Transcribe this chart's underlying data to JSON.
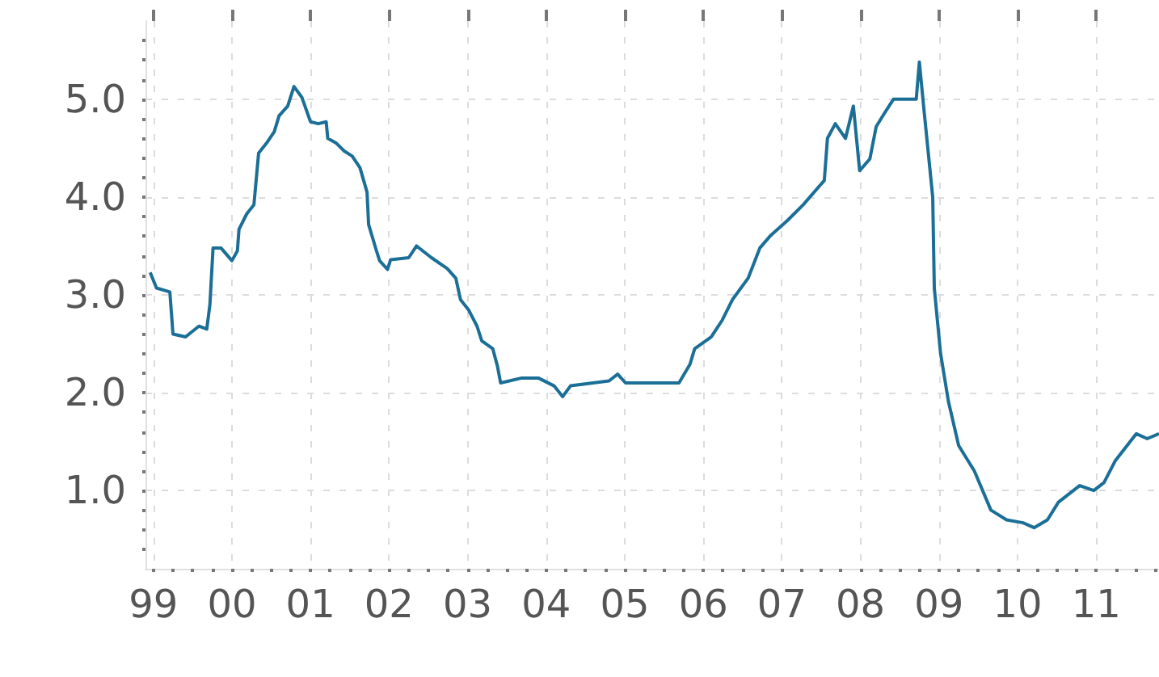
{
  "chart_data": {
    "type": "line",
    "grid": true,
    "marker": "none",
    "xlim": [
      1998.9,
      2011.8
    ],
    "ylim": [
      0.2,
      5.8
    ],
    "xticks": [
      {
        "value": 1999,
        "label": "99"
      },
      {
        "value": 1999.25,
        "label": null
      },
      {
        "value": 1999.5,
        "label": null
      },
      {
        "value": 1999.75,
        "label": null
      },
      {
        "value": 2000,
        "label": "00"
      },
      {
        "value": 2000.25,
        "label": null
      },
      {
        "value": 2000.5,
        "label": null
      },
      {
        "value": 2000.75,
        "label": null
      },
      {
        "value": 2001,
        "label": "01"
      },
      {
        "value": 2001.25,
        "label": null
      },
      {
        "value": 2001.5,
        "label": null
      },
      {
        "value": 2001.75,
        "label": null
      },
      {
        "value": 2002,
        "label": "02"
      },
      {
        "value": 2002.25,
        "label": null
      },
      {
        "value": 2002.5,
        "label": null
      },
      {
        "value": 2002.75,
        "label": null
      },
      {
        "value": 2003,
        "label": "03"
      },
      {
        "value": 2003.25,
        "label": null
      },
      {
        "value": 2003.5,
        "label": null
      },
      {
        "value": 2003.75,
        "label": null
      },
      {
        "value": 2004,
        "label": "04"
      },
      {
        "value": 2004.25,
        "label": null
      },
      {
        "value": 2004.5,
        "label": null
      },
      {
        "value": 2004.75,
        "label": null
      },
      {
        "value": 2005,
        "label": "05"
      },
      {
        "value": 2005.25,
        "label": null
      },
      {
        "value": 2005.5,
        "label": null
      },
      {
        "value": 2005.75,
        "label": null
      },
      {
        "value": 2006,
        "label": "06"
      },
      {
        "value": 2006.25,
        "label": null
      },
      {
        "value": 2006.5,
        "label": null
      },
      {
        "value": 2006.75,
        "label": null
      },
      {
        "value": 2007,
        "label": "07"
      },
      {
        "value": 2007.25,
        "label": null
      },
      {
        "value": 2007.5,
        "label": null
      },
      {
        "value": 2007.75,
        "label": null
      },
      {
        "value": 2008,
        "label": "08"
      },
      {
        "value": 2008.25,
        "label": null
      },
      {
        "value": 2008.5,
        "label": null
      },
      {
        "value": 2008.75,
        "label": null
      },
      {
        "value": 2009,
        "label": "09"
      },
      {
        "value": 2009.25,
        "label": null
      },
      {
        "value": 2009.5,
        "label": null
      },
      {
        "value": 2009.75,
        "label": null
      },
      {
        "value": 2010,
        "label": "10"
      },
      {
        "value": 2010.25,
        "label": null
      },
      {
        "value": 2010.5,
        "label": null
      },
      {
        "value": 2010.75,
        "label": null
      },
      {
        "value": 2011,
        "label": "11"
      },
      {
        "value": 2011.25,
        "label": null
      },
      {
        "value": 2011.5,
        "label": null
      },
      {
        "value": 2011.75,
        "label": null
      }
    ],
    "yticks": [
      {
        "value": 0.4,
        "label": null
      },
      {
        "value": 0.6,
        "label": null
      },
      {
        "value": 0.8,
        "label": null
      },
      {
        "value": 1,
        "label": "1.0"
      },
      {
        "value": 1.2,
        "label": null
      },
      {
        "value": 1.4,
        "label": null
      },
      {
        "value": 1.6,
        "label": null
      },
      {
        "value": 1.8,
        "label": null
      },
      {
        "value": 2,
        "label": "2.0"
      },
      {
        "value": 2.2,
        "label": null
      },
      {
        "value": 2.4,
        "label": null
      },
      {
        "value": 2.6,
        "label": null
      },
      {
        "value": 2.8,
        "label": null
      },
      {
        "value": 3,
        "label": "3.0"
      },
      {
        "value": 3.2,
        "label": null
      },
      {
        "value": 3.4,
        "label": null
      },
      {
        "value": 3.6,
        "label": null
      },
      {
        "value": 3.8,
        "label": null
      },
      {
        "value": 4,
        "label": "4.0"
      },
      {
        "value": 4.2,
        "label": null
      },
      {
        "value": 4.4,
        "label": null
      },
      {
        "value": 4.6,
        "label": null
      },
      {
        "value": 4.8,
        "label": null
      },
      {
        "value": 5,
        "label": "5.0"
      },
      {
        "value": 5.2,
        "label": null
      },
      {
        "value": 5.4,
        "label": null
      },
      {
        "value": 5.6,
        "label": null
      }
    ],
    "series": [
      {
        "color": "#1b6f97",
        "x": [
          1998.96,
          1999.04,
          1999.21,
          1999.25,
          1999.41,
          1999.58,
          1999.68,
          1999.72,
          1999.76,
          1999.86,
          2000.0,
          2000.07,
          2000.09,
          2000.19,
          2000.28,
          2000.34,
          2000.44,
          2000.54,
          2000.6,
          2000.71,
          2000.79,
          2000.89,
          2001.0,
          2001.1,
          2001.2,
          2001.22,
          2001.33,
          2001.43,
          2001.53,
          2001.63,
          2001.72,
          2001.74,
          2001.84,
          2001.88,
          2001.98,
          2002.02,
          2002.25,
          2002.35,
          2002.54,
          2002.74,
          2002.85,
          2002.91,
          2003.01,
          2003.12,
          2003.18,
          2003.32,
          2003.38,
          2003.42,
          2003.69,
          2003.9,
          2004.1,
          2004.21,
          2004.31,
          2004.8,
          2004.91,
          2005.01,
          2005.69,
          2005.83,
          2005.89,
          2006.1,
          2006.24,
          2006.37,
          2006.57,
          2006.72,
          2006.86,
          2007.07,
          2007.27,
          2007.54,
          2007.58,
          2007.68,
          2007.81,
          2007.91,
          2007.99,
          2008.12,
          2008.2,
          2008.3,
          2008.42,
          2008.71,
          2008.75,
          2008.81,
          2008.92,
          2008.94,
          2009.02,
          2009.12,
          2009.25,
          2009.45,
          2009.66,
          2009.86,
          2010.07,
          2010.21,
          2010.38,
          2010.52,
          2010.79,
          2010.97,
          2011.1,
          2011.24,
          2011.51,
          2011.65,
          2011.8
        ],
        "values": [
          3.23,
          3.07,
          3.03,
          2.6,
          2.57,
          2.68,
          2.65,
          2.9,
          3.48,
          3.48,
          3.35,
          3.45,
          3.67,
          3.83,
          3.92,
          4.45,
          4.55,
          4.67,
          4.83,
          4.93,
          5.13,
          5.02,
          4.77,
          4.75,
          4.77,
          4.6,
          4.55,
          4.47,
          4.42,
          4.3,
          4.05,
          3.72,
          3.45,
          3.35,
          3.26,
          3.36,
          3.38,
          3.5,
          3.38,
          3.27,
          3.17,
          2.95,
          2.85,
          2.68,
          2.53,
          2.45,
          2.27,
          2.1,
          2.15,
          2.15,
          2.07,
          1.96,
          2.07,
          2.12,
          2.19,
          2.1,
          2.1,
          2.29,
          2.45,
          2.57,
          2.74,
          2.95,
          3.17,
          3.48,
          3.61,
          3.76,
          3.92,
          4.17,
          4.6,
          4.75,
          4.6,
          4.93,
          4.27,
          4.39,
          4.72,
          4.85,
          5.0,
          5.0,
          5.38,
          4.88,
          4.0,
          3.07,
          2.4,
          1.91,
          1.46,
          1.2,
          0.8,
          0.7,
          0.67,
          0.62,
          0.7,
          0.88,
          1.05,
          1.0,
          1.08,
          1.3,
          1.58,
          1.53,
          1.58
        ]
      }
    ]
  }
}
